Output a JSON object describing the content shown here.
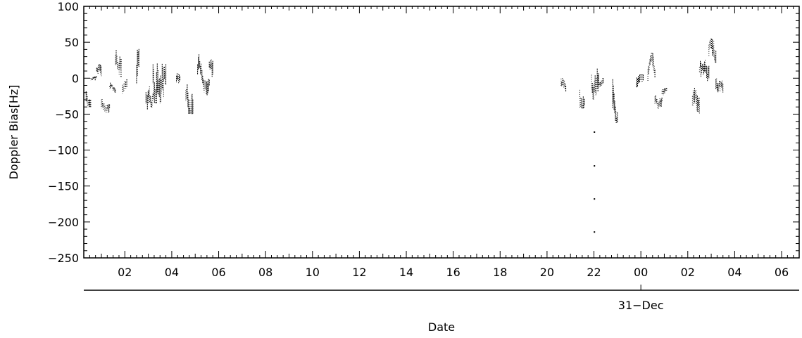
{
  "chart_data": {
    "type": "scatter",
    "title": "",
    "xlabel": "Date",
    "ylabel": "Doppler Bias[Hz]",
    "ylim": [
      -250,
      100
    ],
    "yticks": [
      100,
      50,
      0,
      -50,
      -100,
      -150,
      -200,
      -250
    ],
    "ytick_labels": [
      "100",
      "50",
      "0",
      "-50",
      "-100",
      "-150",
      "-200",
      "-250"
    ],
    "xlim_hours": [
      0.25,
      30.75
    ],
    "xticks_hours": [
      2,
      4,
      6,
      8,
      10,
      12,
      14,
      16,
      18,
      20,
      22,
      24,
      26,
      28,
      30
    ],
    "xtick_labels": [
      "02",
      "04",
      "06",
      "08",
      "10",
      "12",
      "14",
      "16",
      "18",
      "20",
      "22",
      "00",
      "02",
      "04",
      "06"
    ],
    "date_labels": [
      {
        "hour": 24,
        "label": "31-Dec"
      }
    ],
    "grid": false,
    "segments": [
      {
        "x_start": 0.35,
        "x_end": 0.55,
        "y_min": -40,
        "y_max": 0,
        "mean": -25
      },
      {
        "x_start": 0.55,
        "x_end": 0.8,
        "y_min": -5,
        "y_max": 5,
        "mean": 0
      },
      {
        "x_start": 0.8,
        "x_end": 1.0,
        "y_min": 0,
        "y_max": 30,
        "mean": 10
      },
      {
        "x_start": 1.0,
        "x_end": 1.35,
        "y_min": -50,
        "y_max": -25,
        "mean": -40
      },
      {
        "x_start": 1.35,
        "x_end": 1.6,
        "y_min": -20,
        "y_max": 0,
        "mean": -10
      },
      {
        "x_start": 1.6,
        "x_end": 1.85,
        "y_min": 0,
        "y_max": 55,
        "mean": 20
      },
      {
        "x_start": 1.9,
        "x_end": 2.1,
        "y_min": -25,
        "y_max": 0,
        "mean": -15
      },
      {
        "x_start": 2.5,
        "x_end": 2.6,
        "y_min": -25,
        "y_max": 70,
        "mean": 20
      },
      {
        "x_start": 2.9,
        "x_end": 3.2,
        "y_min": -58,
        "y_max": -10,
        "mean": -35
      },
      {
        "x_start": 3.2,
        "x_end": 3.65,
        "y_min": -35,
        "y_max": 58,
        "mean": 15
      },
      {
        "x_start": 3.65,
        "x_end": 3.75,
        "y_min": -30,
        "y_max": 30,
        "mean": 0
      },
      {
        "x_start": 4.2,
        "x_end": 4.35,
        "y_min": -20,
        "y_max": 10,
        "mean": -5
      },
      {
        "x_start": 4.6,
        "x_end": 4.9,
        "y_min": -50,
        "y_max": 15,
        "mean": -20
      },
      {
        "x_start": 5.1,
        "x_end": 5.35,
        "y_min": -10,
        "y_max": 40,
        "mean": 10
      },
      {
        "x_start": 5.35,
        "x_end": 5.6,
        "y_min": -35,
        "y_max": 10,
        "mean": -10
      },
      {
        "x_start": 5.6,
        "x_end": 5.75,
        "y_min": 0,
        "y_max": 45,
        "mean": 15
      },
      {
        "x_start": 20.6,
        "x_end": 20.8,
        "y_min": -20,
        "y_max": 5,
        "mean": -10
      },
      {
        "x_start": 21.4,
        "x_end": 21.6,
        "y_min": -42,
        "y_max": 10,
        "mean": -20
      },
      {
        "x_start": 21.9,
        "x_end": 22.2,
        "y_min": -30,
        "y_max": 30,
        "mean": 0
      },
      {
        "x_start": 22.2,
        "x_end": 22.4,
        "y_min": -20,
        "y_max": 0,
        "mean": -10
      },
      {
        "x_start": 22.8,
        "x_end": 23.0,
        "y_min": -62,
        "y_max": 20,
        "mean": -30
      },
      {
        "x_start": 23.8,
        "x_end": 24.1,
        "y_min": -25,
        "y_max": 5,
        "mean": -10
      },
      {
        "x_start": 24.3,
        "x_end": 24.6,
        "y_min": -10,
        "y_max": 35,
        "mean": 10
      },
      {
        "x_start": 24.6,
        "x_end": 24.9,
        "y_min": -50,
        "y_max": -20,
        "mean": -35
      },
      {
        "x_start": 24.9,
        "x_end": 25.1,
        "y_min": -25,
        "y_max": -10,
        "mean": -20
      },
      {
        "x_start": 26.2,
        "x_end": 26.5,
        "y_min": -50,
        "y_max": 0,
        "mean": -25
      },
      {
        "x_start": 26.5,
        "x_end": 26.9,
        "y_min": -15,
        "y_max": 30,
        "mean": 5
      },
      {
        "x_start": 26.9,
        "x_end": 27.2,
        "y_min": 5,
        "y_max": 55,
        "mean": 30
      },
      {
        "x_start": 27.2,
        "x_end": 27.5,
        "y_min": -25,
        "y_max": 5,
        "mean": -10
      }
    ],
    "outlier_points": [
      {
        "x": 22.02,
        "y": -75
      },
      {
        "x": 22.02,
        "y": -122
      },
      {
        "x": 22.02,
        "y": -168
      },
      {
        "x": 22.02,
        "y": -214
      }
    ]
  }
}
